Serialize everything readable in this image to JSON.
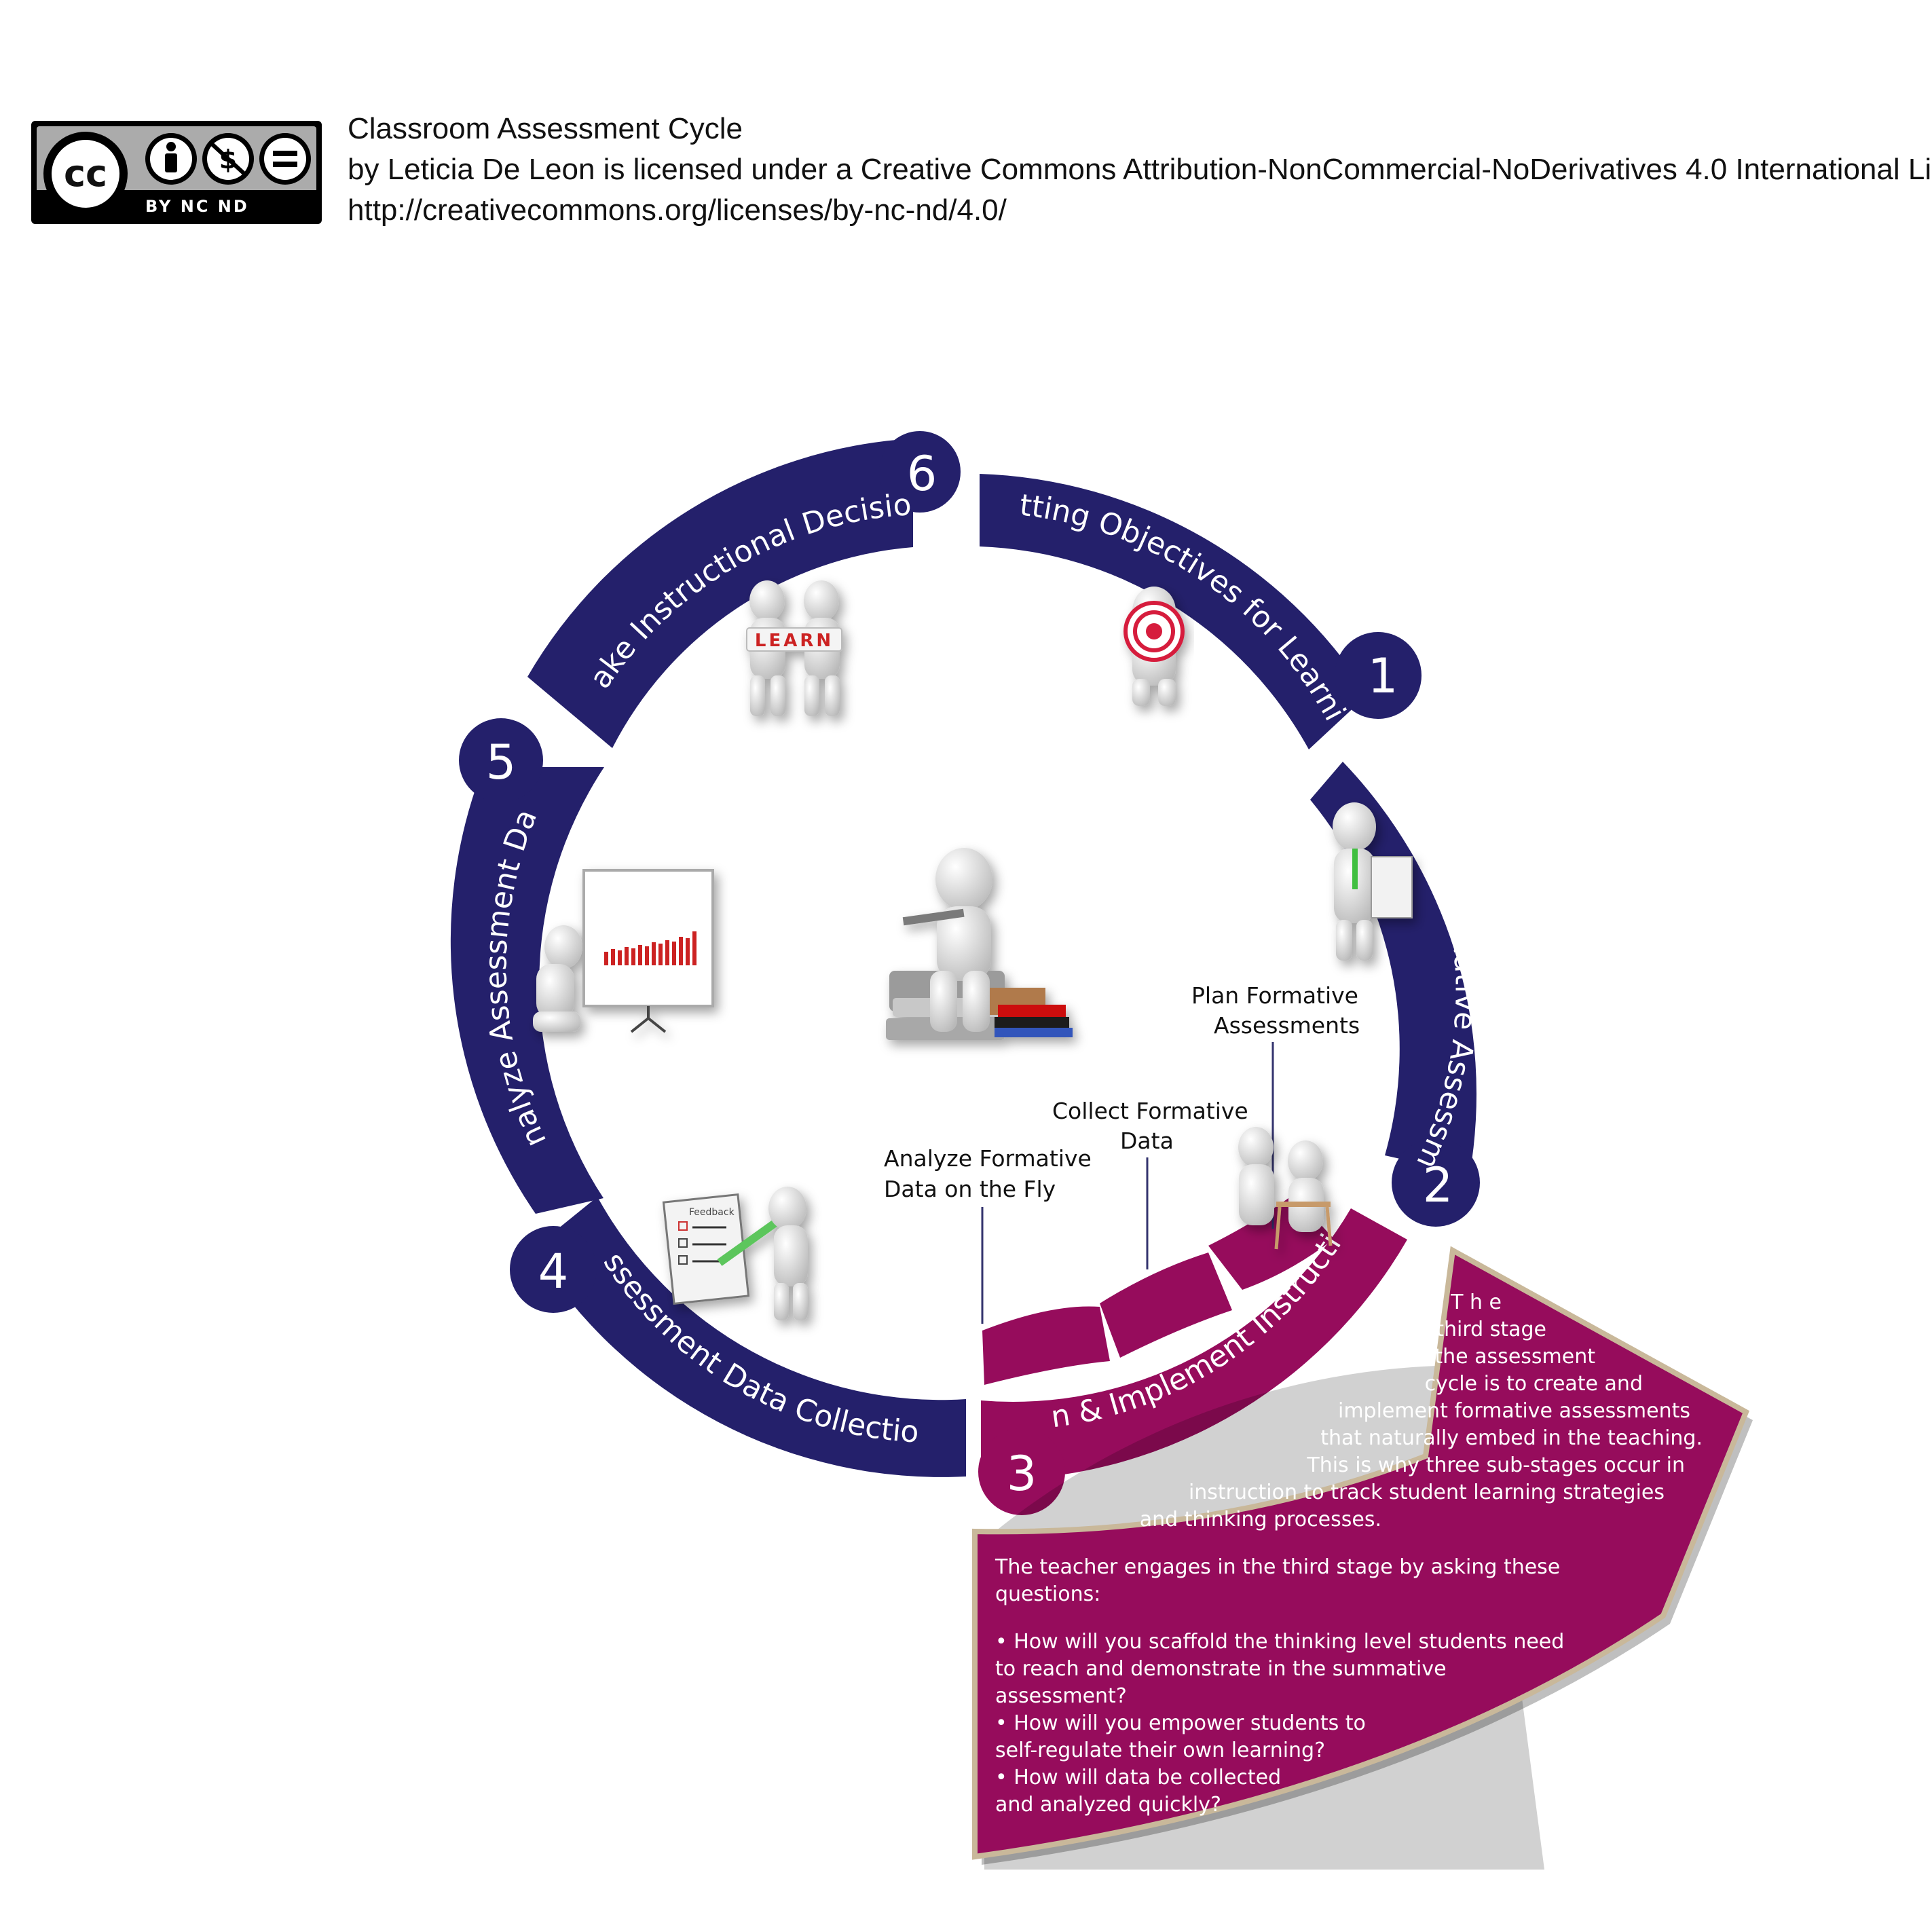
{
  "license": {
    "badge_tags": "BY  NC  ND",
    "title": "Classroom Assessment Cycle",
    "attribution": "by Leticia De Leon is licensed under a Creative Commons Attribution-NonCommercial-NoDerivatives 4.0 International License.",
    "url": "http://creativecommons.org/licenses/by-nc-nd/4.0/"
  },
  "colors": {
    "navy": "#24206b",
    "magenta": "#960c5c",
    "panel_border": "#c9b89a"
  },
  "stages": [
    {
      "number": "1",
      "label": "Setting Objectives for Learning",
      "icon": "target-figure-icon"
    },
    {
      "number": "2",
      "label": "Planning Summative Assessments",
      "icon": "document-figure-icon"
    },
    {
      "number": "3",
      "label": "Plan & Implement Instruction",
      "icon": "teaching-figures-icon"
    },
    {
      "number": "4",
      "label": "Assessment Data Collection",
      "icon": "feedback-checklist-icon"
    },
    {
      "number": "5",
      "label": "Analyze Assessment Data",
      "icon": "chart-presentation-icon"
    },
    {
      "number": "6",
      "label": "Make Instructional Decisions",
      "icon": "learn-figures-icon"
    }
  ],
  "sub_stages": [
    {
      "label_lines": [
        "Plan Formative",
        "Assessments"
      ]
    },
    {
      "label_lines": [
        "Collect Formative",
        "Data"
      ]
    },
    {
      "label_lines": [
        "Analyze Formative",
        "Data on the Fly"
      ]
    }
  ],
  "figure_props": {
    "learn_letters": "LEARN",
    "feedback_title": "Feedback"
  },
  "panel": {
    "intro_lines": [
      "T h e",
      "third   stage",
      "in   the   assessment",
      "cycle   is   to   create   and",
      "implement  formative  assessments",
      "that  naturally  embed  in  the  teaching.",
      "This  is  why  three  sub-stages  occur  in",
      "instruction to track student learning strategies",
      "and thinking processes."
    ],
    "question_lines": [
      "The   teacher   engages   in   the   third   stage   by   asking   these",
      "questions:",
      "",
      "• How will you scaffold the thinking level students need",
      "to   reach   and   demonstrate   in   the   summative",
      "assessment?",
      "•  How  will  you  empower  students  to",
      "self-regulate their own learning?",
      "•  How  will  data  be  collected",
      "and analyzed quickly?"
    ]
  }
}
